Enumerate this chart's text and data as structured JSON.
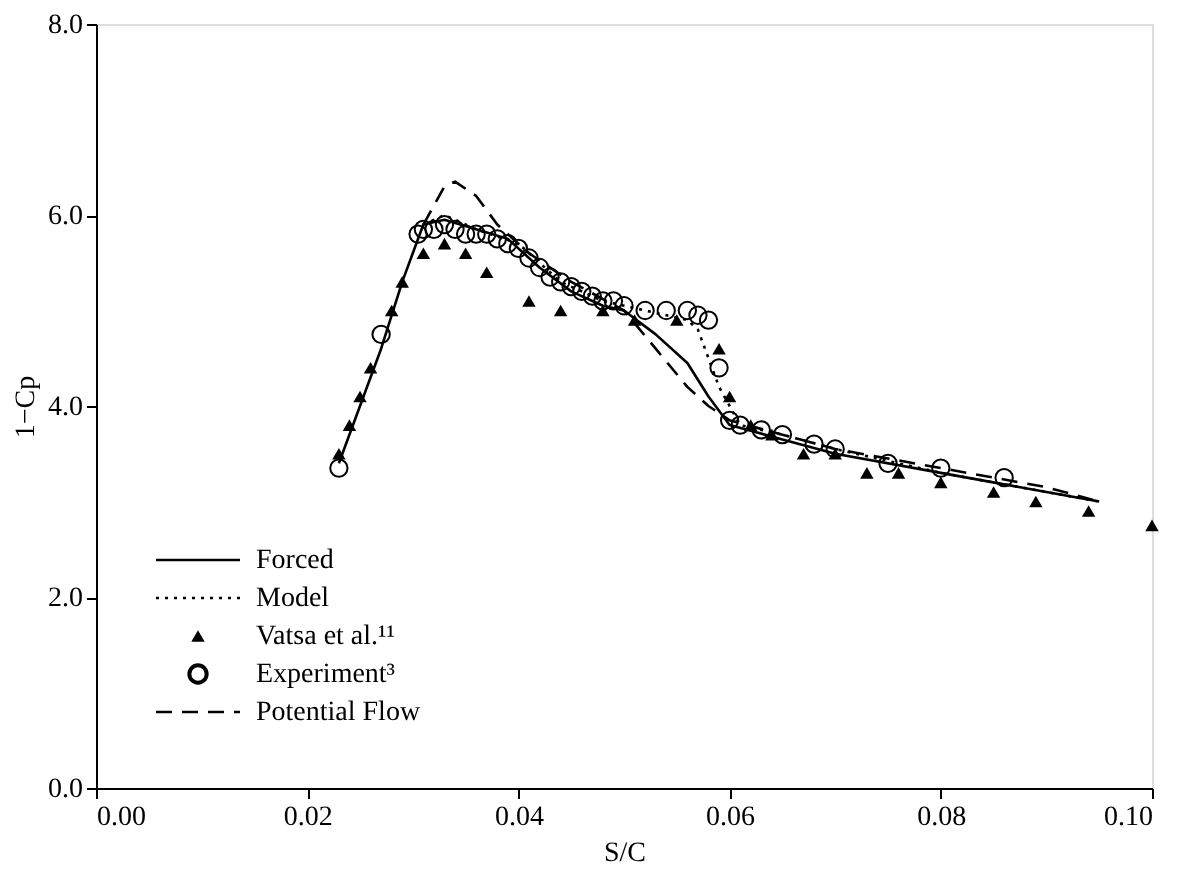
{
  "chart_data": {
    "type": "line",
    "xlabel": "S/C",
    "ylabel": "1−Cp",
    "xlim": [
      0,
      0.1
    ],
    "ylim": [
      0,
      8
    ],
    "xticks": [
      {
        "value": 0,
        "label": "0.00"
      },
      {
        "value": 0.02,
        "label": "0.02"
      },
      {
        "value": 0.04,
        "label": "0.04"
      },
      {
        "value": 0.06,
        "label": "0.06"
      },
      {
        "value": 0.08,
        "label": "0.08"
      },
      {
        "value": 0.1,
        "label": "0.10"
      }
    ],
    "yticks": [
      {
        "value": 0,
        "label": "0.0"
      },
      {
        "value": 2,
        "label": "2.0"
      },
      {
        "value": 4,
        "label": "4.0"
      },
      {
        "value": 6,
        "label": "6.0"
      },
      {
        "value": 8,
        "label": "8.0"
      }
    ],
    "grid": false,
    "legend": "bottom left",
    "series": [
      {
        "name": "Forced",
        "line_style": "solid",
        "color": "#000000",
        "x": [
          0.023,
          0.025,
          0.027,
          0.029,
          0.031,
          0.033,
          0.036,
          0.039,
          0.042,
          0.045,
          0.048,
          0.05,
          0.053,
          0.056,
          0.058,
          0.06,
          0.065,
          0.07,
          0.08,
          0.09,
          0.095
        ],
        "values": [
          3.4,
          4.0,
          4.6,
          5.3,
          5.9,
          5.95,
          5.85,
          5.75,
          5.45,
          5.2,
          5.05,
          5.0,
          4.75,
          4.45,
          4.1,
          3.8,
          3.65,
          3.5,
          3.3,
          3.1,
          3.0
        ]
      },
      {
        "name": "Model",
        "line_style": "dotted",
        "color": "#000000",
        "x": [
          0.031,
          0.033,
          0.036,
          0.04,
          0.044,
          0.048,
          0.052,
          0.056,
          0.057,
          0.059,
          0.061,
          0.065,
          0.07,
          0.08,
          0.09,
          0.095
        ],
        "values": [
          5.9,
          6.0,
          5.85,
          5.7,
          5.3,
          5.1,
          5.0,
          4.9,
          4.8,
          4.2,
          3.8,
          3.7,
          3.55,
          3.3,
          3.1,
          3.0
        ]
      },
      {
        "name": "Vatsa et al.¹¹",
        "type": "scatter",
        "marker": "triangle",
        "color": "#000000",
        "x": [
          0.023,
          0.024,
          0.025,
          0.026,
          0.028,
          0.029,
          0.031,
          0.033,
          0.035,
          0.037,
          0.041,
          0.044,
          0.048,
          0.051,
          0.055,
          0.059,
          0.06,
          0.062,
          0.064,
          0.067,
          0.07,
          0.073,
          0.076,
          0.08,
          0.085,
          0.089,
          0.094,
          0.1
        ],
        "values": [
          3.5,
          3.8,
          4.1,
          4.4,
          5.0,
          5.3,
          5.6,
          5.7,
          5.6,
          5.4,
          5.1,
          5.0,
          5.0,
          4.9,
          4.9,
          4.6,
          4.1,
          3.8,
          3.7,
          3.5,
          3.5,
          3.3,
          3.3,
          3.2,
          3.1,
          3.0,
          2.9,
          2.75
        ]
      },
      {
        "name": "Experiment³",
        "type": "scatter",
        "marker": "circle",
        "color": "#000000",
        "x": [
          0.023,
          0.027,
          0.0305,
          0.031,
          0.032,
          0.033,
          0.034,
          0.035,
          0.036,
          0.037,
          0.038,
          0.039,
          0.04,
          0.041,
          0.042,
          0.043,
          0.044,
          0.045,
          0.046,
          0.047,
          0.048,
          0.049,
          0.05,
          0.052,
          0.054,
          0.056,
          0.057,
          0.058,
          0.059,
          0.06,
          0.061,
          0.063,
          0.065,
          0.068,
          0.07,
          0.075,
          0.08,
          0.086
        ],
        "values": [
          3.35,
          4.75,
          5.8,
          5.85,
          5.85,
          5.9,
          5.85,
          5.8,
          5.8,
          5.8,
          5.75,
          5.7,
          5.65,
          5.55,
          5.45,
          5.35,
          5.3,
          5.25,
          5.2,
          5.15,
          5.1,
          5.1,
          5.05,
          5.0,
          5.0,
          5.0,
          4.95,
          4.9,
          4.4,
          3.85,
          3.8,
          3.75,
          3.7,
          3.6,
          3.55,
          3.4,
          3.35,
          3.25
        ]
      },
      {
        "name": "Potential Flow",
        "line_style": "dashed",
        "color": "#000000",
        "x": [
          0.031,
          0.033,
          0.034,
          0.036,
          0.038,
          0.041,
          0.045,
          0.05,
          0.053,
          0.056,
          0.058,
          0.06,
          0.065,
          0.07,
          0.08,
          0.09,
          0.095
        ],
        "values": [
          5.9,
          6.3,
          6.35,
          6.2,
          5.9,
          5.6,
          5.3,
          5.0,
          4.6,
          4.2,
          4.0,
          3.85,
          3.7,
          3.55,
          3.35,
          3.15,
          3.0
        ]
      }
    ]
  }
}
